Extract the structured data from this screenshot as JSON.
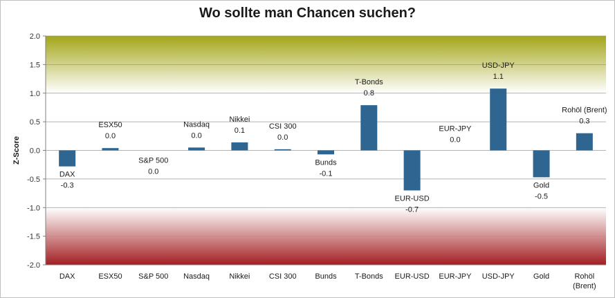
{
  "chart_data": {
    "type": "bar",
    "title": "Wo sollte man Chancen suchen?",
    "xlabel": "",
    "ylabel": "Z-Score",
    "ylim": [
      -2.0,
      2.0
    ],
    "ytick_step": 0.5,
    "grid": true,
    "legend": "none",
    "categories": [
      "DAX",
      "ESX50",
      "S&P 500",
      "Nasdaq",
      "Nikkei",
      "CSI 300",
      "Bunds",
      "T-Bonds",
      "EUR-USD",
      "EUR-JPY",
      "USD-JPY",
      "Gold",
      "Rohöl (Brent)"
    ],
    "values": [
      -0.28,
      0.04,
      0.0,
      0.05,
      0.14,
      0.02,
      -0.07,
      0.79,
      -0.7,
      0.0,
      1.08,
      -0.47,
      0.3
    ],
    "data_labels": [
      "-0.3",
      "0.0",
      "0.0",
      "0.0",
      "0.1",
      "0.0",
      "-0.1",
      "0.8",
      "-0.7",
      "0.0",
      "1.1",
      "-0.5",
      "0.3"
    ],
    "bar_color": "#2e6591",
    "bands": {
      "positive_color": "#a3a619",
      "negative_color": "#a31f22"
    }
  }
}
